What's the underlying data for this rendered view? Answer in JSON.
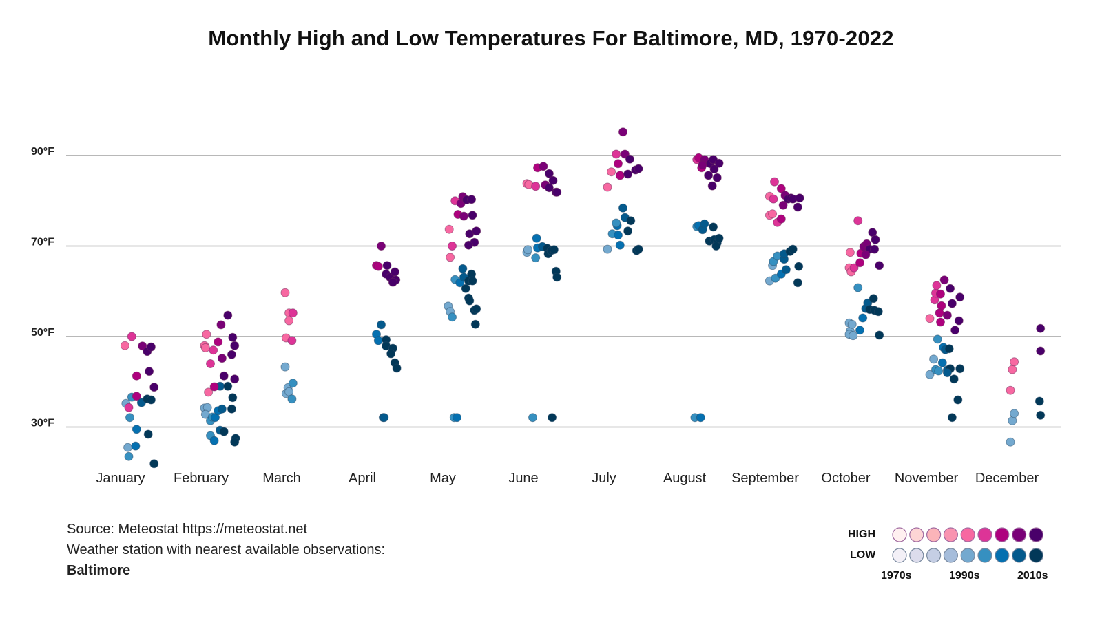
{
  "chart_data": {
    "type": "scatter",
    "title": "Monthly High and Low Temperatures For Baltimore, MD, 1970-2022",
    "ylim": [
      20,
      97
    ],
    "y_ticks": [
      {
        "value": 90,
        "label": "90°F"
      },
      {
        "value": 70,
        "label": "70°F"
      },
      {
        "value": 50,
        "label": "50°F"
      },
      {
        "value": 30,
        "label": "30°F"
      }
    ],
    "grid": true,
    "categories": [
      "January",
      "February",
      "March",
      "April",
      "May",
      "June",
      "July",
      "August",
      "September",
      "October",
      "November",
      "December"
    ],
    "months": [
      {
        "high": [
          [
            1991,
            48
          ],
          [
            1998,
            50
          ],
          [
            1995,
            34.3
          ],
          [
            2003,
            36.8
          ],
          [
            2003,
            41.3
          ],
          [
            2009,
            47.9
          ],
          [
            2014,
            46.7
          ],
          [
            2018,
            47.7
          ],
          [
            2016,
            42.3
          ],
          [
            2021,
            38.8
          ]
        ],
        "low": [
          [
            1992,
            35.2
          ],
          [
            1998,
            36.6
          ],
          [
            1996,
            32.1
          ],
          [
            2003,
            29.5
          ],
          [
            1994,
            25.5
          ],
          [
            1995,
            23.5
          ],
          [
            2002,
            25.8
          ],
          [
            2008,
            35.4
          ],
          [
            2014,
            36.2
          ],
          [
            2018,
            36
          ],
          [
            2015,
            28.4
          ],
          [
            2021,
            21.9
          ]
        ]
      },
      {
        "high": [
          [
            1990,
            48
          ],
          [
            1991,
            47.5
          ],
          [
            1992,
            50.5
          ],
          [
            1996,
            44
          ],
          [
            1999,
            47
          ],
          [
            2004,
            48.8
          ],
          [
            2008,
            45.2
          ],
          [
            2007,
            52.6
          ],
          [
            2014,
            54.7
          ],
          [
            2018,
            46
          ],
          [
            2019,
            49.8
          ],
          [
            2021,
            48
          ],
          [
            1994,
            37.7
          ],
          [
            2000,
            38.9
          ],
          [
            2010,
            41.3
          ],
          [
            2021,
            40.6
          ]
        ],
        "low": [
          [
            1990,
            34.2
          ],
          [
            1993,
            34.3
          ],
          [
            1991,
            32.8
          ],
          [
            1996,
            31.4
          ],
          [
            1998,
            32.2
          ],
          [
            2001,
            32.1
          ],
          [
            2004,
            33.6
          ],
          [
            2008,
            34
          ],
          [
            1996,
            28.1
          ],
          [
            2000,
            27
          ],
          [
            2006,
            29.3
          ],
          [
            2010,
            29
          ],
          [
            2006,
            39
          ],
          [
            2014,
            39
          ],
          [
            2019,
            36.5
          ],
          [
            2018,
            34
          ],
          [
            2022,
            27.5
          ],
          [
            2021,
            26.7
          ]
        ]
      },
      {
        "high": [
          [
            1990,
            59.7
          ],
          [
            1994,
            55.2
          ],
          [
            1998,
            55.2
          ],
          [
            1994,
            53.5
          ],
          [
            1991,
            49.7
          ],
          [
            1997,
            49.1
          ]
        ],
        "low": [
          [
            1990,
            43.3
          ],
          [
            1993,
            38.7
          ],
          [
            1998,
            39.7
          ],
          [
            1991,
            37.4
          ],
          [
            1994,
            37.8
          ],
          [
            1997,
            36.2
          ]
        ]
      },
      {
        "high": [
          [
            2006,
            70
          ],
          [
            2001,
            65.7
          ],
          [
            2003,
            65.5
          ],
          [
            2012,
            65.7
          ],
          [
            2011,
            63.8
          ],
          [
            2015,
            63.1
          ],
          [
            2020,
            64.3
          ],
          [
            2021,
            62.5
          ],
          [
            2018,
            62
          ]
        ],
        "low": [
          [
            2006,
            52.6
          ],
          [
            2001,
            50.5
          ],
          [
            2003,
            49.1
          ],
          [
            2011,
            49.3
          ],
          [
            2011,
            47.9
          ],
          [
            2018,
            47.4
          ],
          [
            2016,
            46.2
          ],
          [
            2020,
            44.2
          ],
          [
            2022,
            43
          ],
          [
            2008,
            32.1
          ],
          [
            2009,
            32.1
          ]
        ]
      },
      {
        "high": [
          [
            1993,
            73.7
          ],
          [
            1996,
            70
          ],
          [
            1994,
            67.5
          ],
          [
            1999,
            80
          ],
          [
            2005,
            79.4
          ],
          [
            2007,
            80.9
          ],
          [
            2002,
            77
          ],
          [
            2008,
            76.6
          ],
          [
            2011,
            80.2
          ],
          [
            2016,
            80.3
          ],
          [
            2017,
            76.8
          ],
          [
            2014,
            72.7
          ],
          [
            2021,
            73.3
          ],
          [
            2019,
            70.8
          ],
          [
            2013,
            70.2
          ]
        ],
        "low": [
          [
            1992,
            56.7
          ],
          [
            1994,
            55.5
          ],
          [
            1996,
            54.3
          ],
          [
            1999,
            62.6
          ],
          [
            2004,
            61.9
          ],
          [
            2007,
            65
          ],
          [
            2008,
            63.1
          ],
          [
            2010,
            60.6
          ],
          [
            2013,
            62.3
          ],
          [
            2016,
            63.8
          ],
          [
            2017,
            62.3
          ],
          [
            2013,
            58.5
          ],
          [
            2014,
            57.9
          ],
          [
            2019,
            55.8
          ],
          [
            2021,
            56.1
          ],
          [
            2020,
            52.7
          ],
          [
            1998,
            32.1
          ],
          [
            2001,
            32.1
          ]
        ]
      },
      {
        "high": [
          [
            1990,
            83.8
          ],
          [
            1992,
            83.6
          ],
          [
            1999,
            83.2
          ],
          [
            2001,
            87.3
          ],
          [
            2007,
            87.6
          ],
          [
            2009,
            83.5
          ],
          [
            2013,
            82.9
          ],
          [
            2013,
            86
          ],
          [
            2017,
            84.5
          ],
          [
            2020,
            81.9
          ],
          [
            2021,
            81.9
          ]
        ],
        "low": [
          [
            1990,
            68.6
          ],
          [
            1991,
            69.2
          ],
          [
            1999,
            67.4
          ],
          [
            2000,
            71.7
          ],
          [
            2001,
            69.6
          ],
          [
            2006,
            69.9
          ],
          [
            2011,
            69.5
          ],
          [
            2012,
            68.3
          ],
          [
            2015,
            69
          ],
          [
            2018,
            69.2
          ],
          [
            2020,
            64.4
          ],
          [
            2021,
            63.1
          ],
          [
            1996,
            32.1
          ],
          [
            2016,
            32.1
          ]
        ]
      },
      {
        "high": [
          [
            1990,
            83
          ],
          [
            1994,
            86.4
          ],
          [
            2001,
            88.2
          ],
          [
            1999,
            90.3
          ],
          [
            2006,
            95.2
          ],
          [
            2008,
            90.3
          ],
          [
            2003,
            85.6
          ],
          [
            2011,
            85.9
          ],
          [
            2013,
            89.2
          ],
          [
            2019,
            86.8
          ],
          [
            2022,
            87.1
          ]
        ],
        "low": [
          [
            1990,
            69.3
          ],
          [
            1995,
            72.7
          ],
          [
            2000,
            74.5
          ],
          [
            1999,
            75.1
          ],
          [
            2001,
            72.4
          ],
          [
            2003,
            70.2
          ],
          [
            2006,
            78.4
          ],
          [
            2008,
            76.3
          ],
          [
            2011,
            73.3
          ],
          [
            2014,
            75.6
          ],
          [
            2020,
            69
          ],
          [
            2022,
            69.3
          ]
        ]
      },
      {
        "high": [
          [
            1999,
            89.1
          ],
          [
            2001,
            89.5
          ],
          [
            2004,
            87.3
          ],
          [
            2007,
            89.1
          ],
          [
            2005,
            87.9
          ],
          [
            2011,
            85.6
          ],
          [
            2013,
            88.2
          ],
          [
            2016,
            89.1
          ],
          [
            2017,
            87
          ],
          [
            2020,
            85.1
          ],
          [
            2022,
            88.3
          ],
          [
            2015,
            83.3
          ]
        ],
        "low": [
          [
            1999,
            74.3
          ],
          [
            2001,
            74.5
          ],
          [
            2005,
            73.6
          ],
          [
            2007,
            74.9
          ],
          [
            2012,
            71.1
          ],
          [
            2016,
            74.2
          ],
          [
            2017,
            71.4
          ],
          [
            2020,
            70.7
          ],
          [
            2022,
            71.7
          ],
          [
            2019,
            70
          ],
          [
            1997,
            32.1
          ],
          [
            2003,
            32.1
          ]
        ]
      },
      {
        "high": [
          [
            1991,
            76.8
          ],
          [
            1994,
            77.1
          ],
          [
            1991,
            81
          ],
          [
            1995,
            80.4
          ],
          [
            1996,
            84.2
          ],
          [
            1999,
            75.2
          ],
          [
            2003,
            76
          ],
          [
            2003,
            82.7
          ],
          [
            2005,
            79
          ],
          [
            2007,
            81.2
          ],
          [
            2010,
            80.4
          ],
          [
            2013,
            80.6
          ],
          [
            2015,
            80.4
          ],
          [
            2020,
            78.6
          ],
          [
            2022,
            80.6
          ]
        ],
        "low": [
          [
            1991,
            62.3
          ],
          [
            1994,
            65.7
          ],
          [
            1995,
            66.6
          ],
          [
            1997,
            62.9
          ],
          [
            1999,
            67.8
          ],
          [
            2003,
            63.8
          ],
          [
            2006,
            67.1
          ],
          [
            2006,
            68.3
          ],
          [
            2008,
            64.8
          ],
          [
            2012,
            68.8
          ],
          [
            2015,
            69.3
          ],
          [
            2021,
            65.5
          ],
          [
            2020,
            61.9
          ]
        ]
      },
      {
        "high": [
          [
            1990,
            65.2
          ],
          [
            1991,
            68.6
          ],
          [
            1992,
            64.3
          ],
          [
            1995,
            65.2
          ],
          [
            1999,
            75.6
          ],
          [
            2001,
            66.3
          ],
          [
            2002,
            68.4
          ],
          [
            2005,
            69.9
          ],
          [
            2008,
            70.5
          ],
          [
            2011,
            69.3
          ],
          [
            2014,
            73
          ],
          [
            2017,
            71.4
          ],
          [
            2021,
            65.7
          ],
          [
            2016,
            69.3
          ],
          [
            2007,
            68.1
          ]
        ],
        "low": [
          [
            1990,
            53
          ],
          [
            1991,
            51.2
          ],
          [
            1990,
            50.5
          ],
          [
            1994,
            50.2
          ],
          [
            1993,
            52.7
          ],
          [
            1999,
            60.8
          ],
          [
            2001,
            51.4
          ],
          [
            2004,
            54.1
          ],
          [
            2007,
            56.2
          ],
          [
            2009,
            57.4
          ],
          [
            2011,
            56
          ],
          [
            2015,
            58.4
          ],
          [
            2016,
            55.8
          ],
          [
            2020,
            55.5
          ],
          [
            2021,
            50.3
          ]
        ]
      },
      {
        "high": [
          [
            1990,
            54
          ],
          [
            1995,
            58.1
          ],
          [
            1996,
            59.6
          ],
          [
            1997,
            61.3
          ],
          [
            2001,
            59.4
          ],
          [
            2005,
            62.5
          ],
          [
            2002,
            56.8
          ],
          [
            2000,
            55.2
          ],
          [
            2001,
            53.2
          ],
          [
            2008,
            54.7
          ],
          [
            2011,
            60.6
          ],
          [
            2013,
            57.3
          ],
          [
            2016,
            51.4
          ],
          [
            2020,
            53.5
          ],
          [
            2021,
            58.7
          ]
        ],
        "low": [
          [
            1990,
            41.6
          ],
          [
            1994,
            45
          ],
          [
            1998,
            49.4
          ],
          [
            1996,
            42.7
          ],
          [
            1999,
            42.4
          ],
          [
            2003,
            44.2
          ],
          [
            2004,
            47.6
          ],
          [
            2006,
            47.1
          ],
          [
            2010,
            47.3
          ],
          [
            2008,
            42.6
          ],
          [
            2011,
            42.9
          ],
          [
            2015,
            40.6
          ],
          [
            2021,
            42.9
          ],
          [
            2019,
            36
          ],
          [
            2013,
            32.1
          ],
          [
            2008,
            42
          ]
        ]
      },
      {
        "high": [
          [
            1990,
            38.1
          ],
          [
            1992,
            42.7
          ],
          [
            1994,
            44.4
          ],
          [
            2021,
            51.8
          ],
          [
            2021,
            46.8
          ]
        ],
        "low": [
          [
            1990,
            26.7
          ],
          [
            1992,
            31.4
          ],
          [
            1994,
            33
          ],
          [
            2020,
            35.7
          ],
          [
            2021,
            32.6
          ]
        ]
      }
    ],
    "legend": {
      "high_label": "HIGH",
      "low_label": "LOW",
      "decade_labels": [
        "1970s",
        "1990s",
        "2010s"
      ],
      "high_colors": [
        "#fff0f0",
        "#fdd5d5",
        "#fbb4b9",
        "#f993b0",
        "#f768a1",
        "#dd3497",
        "#ae017e",
        "#7a0177",
        "#49006a"
      ],
      "low_colors": [
        "#f3f0f7",
        "#dcdcec",
        "#c5cee4",
        "#a6bddb",
        "#74a9cf",
        "#3690c0",
        "#0570b0",
        "#045a8d",
        "#023858"
      ],
      "placement": "bottom-right"
    }
  },
  "source": {
    "line1": "Source: Meteostat https://meteostat.net",
    "line2": "Weather station with nearest available observations:",
    "station": "Baltimore"
  }
}
